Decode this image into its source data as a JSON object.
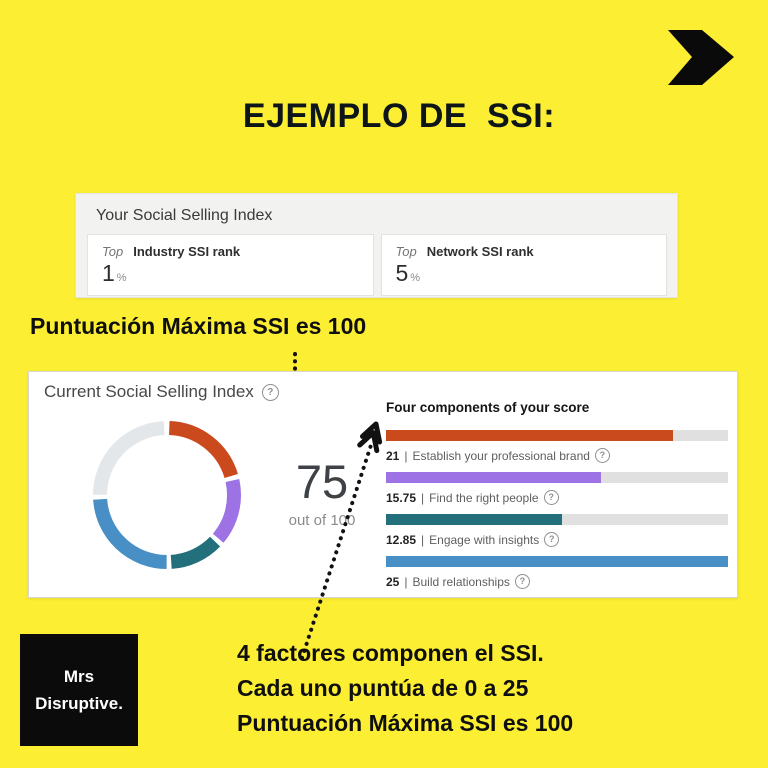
{
  "page": {
    "title": "EJEMPLO DE  SSI:",
    "bg_color": "#fcee33"
  },
  "annotations": {
    "max_score_note": "Puntuación Máxima SSI es 100",
    "bottom_note_lines": [
      "4 factores componen el SSI.",
      "Cada uno puntúa de 0 a 25",
      "Puntuación Máxima SSI es 100"
    ]
  },
  "logo": {
    "line1": "Mrs",
    "line2": "Disruptive."
  },
  "ssi_rank_panel": {
    "title": "Your Social Selling Index",
    "cards": [
      {
        "prefix": "Top",
        "label": "Industry SSI rank",
        "value": "1",
        "unit": "%"
      },
      {
        "prefix": "Top",
        "label": "Network SSI rank",
        "value": "5",
        "unit": "%"
      }
    ]
  },
  "ssi_panel": {
    "title": "Current Social Selling Index",
    "help_glyph": "?",
    "score_value": "75",
    "score_caption": "out of 100",
    "components_title": "Four components of your score",
    "label_separator": "|"
  },
  "chart_data": {
    "type": "pie",
    "subtype": "donut-with-bars",
    "title": "Current Social Selling Index",
    "score": 75,
    "score_max": 100,
    "donut_remainder_value": 25,
    "donut_remainder_color": "#e3e7ea",
    "bar_track_color": "#e0e0e0",
    "components": [
      {
        "score": "21",
        "value": 21,
        "max": 25,
        "name": "Establish your professional brand",
        "color": "#cb4a1d"
      },
      {
        "score": "15.75",
        "value": 15.75,
        "max": 25,
        "name": "Find the right people",
        "color": "#9d72e4"
      },
      {
        "score": "12.85",
        "value": 12.85,
        "max": 25,
        "name": "Engage with insights",
        "color": "#246f7c"
      },
      {
        "score": "25",
        "value": 25,
        "max": 25,
        "name": "Build relationships",
        "color": "#478fc4"
      }
    ]
  }
}
